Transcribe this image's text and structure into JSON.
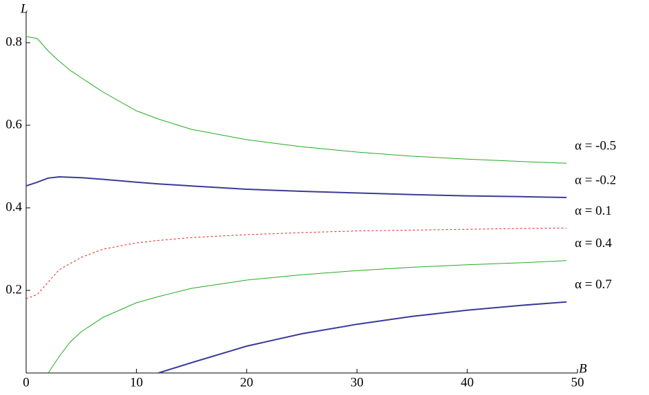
{
  "chart_data": {
    "type": "line",
    "x_label": "B",
    "y_label": "L",
    "x": [
      0,
      1,
      2,
      3,
      4,
      5,
      7,
      10,
      12,
      15,
      20,
      25,
      30,
      35,
      40,
      45,
      49
    ],
    "series": [
      {
        "name": "α = -0.5",
        "color": "#22aa22",
        "width": 1,
        "dashed": false,
        "values": [
          0.815,
          0.81,
          0.78,
          0.755,
          0.733,
          0.715,
          0.68,
          0.635,
          0.615,
          0.59,
          0.565,
          0.548,
          0.535,
          0.525,
          0.518,
          0.512,
          0.508
        ]
      },
      {
        "name": "α = -0.2",
        "color": "#3a3a99",
        "width": 2,
        "dashed": false,
        "values": [
          0.453,
          0.462,
          0.472,
          0.475,
          0.474,
          0.473,
          0.469,
          0.462,
          0.458,
          0.453,
          0.445,
          0.44,
          0.436,
          0.432,
          0.429,
          0.427,
          0.425
        ]
      },
      {
        "name": "α = 0.1",
        "color": "#e02020",
        "width": 1,
        "dashed": true,
        "values": [
          0.18,
          0.19,
          0.22,
          0.25,
          0.265,
          0.28,
          0.3,
          0.315,
          0.321,
          0.328,
          0.335,
          0.34,
          0.344,
          0.346,
          0.348,
          0.35,
          0.351
        ]
      },
      {
        "name": "α = 0.4",
        "color": "#22aa22",
        "width": 1,
        "dashed": false,
        "values": [
          null,
          null,
          0,
          0.04,
          0.075,
          0.1,
          0.135,
          0.17,
          0.185,
          0.205,
          0.225,
          0.238,
          0.248,
          0.256,
          0.262,
          0.267,
          0.272
        ]
      },
      {
        "name": "α = 0.7",
        "color": "#3a3a99",
        "width": 2,
        "dashed": false,
        "values": [
          null,
          null,
          null,
          null,
          null,
          null,
          null,
          null,
          0,
          0.025,
          0.065,
          0.095,
          0.118,
          0.137,
          0.152,
          0.164,
          0.172
        ]
      }
    ],
    "xlim": [
      0,
      50
    ],
    "ylim": [
      0,
      0.86
    ],
    "xticks": [
      0,
      10,
      20,
      30,
      40,
      50
    ],
    "yticks": [
      0.2,
      0.4,
      0.6,
      0.8
    ]
  }
}
